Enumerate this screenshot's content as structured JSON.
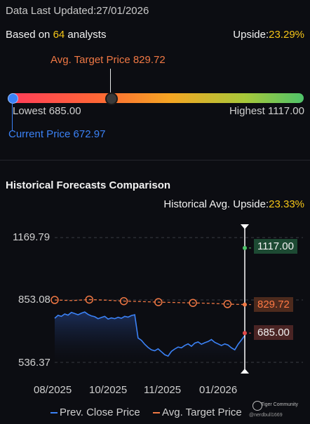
{
  "header": {
    "updated_label": "Data Last Updated:",
    "updated_date": "27/01/2026",
    "based_prefix": "Based on ",
    "analyst_count": "64",
    "based_suffix": " analysts",
    "upside_label": "Upside:",
    "upside_value": "23.29%"
  },
  "target_bar": {
    "avg_target_label": "Avg. Target Price 829.72",
    "lowest_label": "Lowest 685.00",
    "highest_label": "Highest 1117.00",
    "current_label": "Current Price 672.97",
    "colors": {
      "low": "#ff3c5a",
      "mid": "#f5a623",
      "high": "#4fc36a",
      "current": "#3b82f6",
      "avg": "#f07844"
    }
  },
  "history": {
    "title": "Historical Forecasts Comparison",
    "upside_label": "Historical Avg. Upside:",
    "upside_value": "23.33%",
    "y_ticks": [
      "1169.79",
      "853.08",
      "536.37"
    ],
    "x_ticks": [
      "08/2025",
      "10/2025",
      "11/2025",
      "01/2026"
    ],
    "tag_high": "1117.00",
    "tag_avg": "829.72",
    "tag_low": "685.00",
    "legend_close": "Prev. Close Price",
    "legend_target": "Avg. Target Price",
    "brand": "Tiger Community",
    "watermark": "@nerdbull1669"
  },
  "chart_data": {
    "type": "line",
    "x_ticks": [
      "08/2025",
      "10/2025",
      "11/2025",
      "01/2026"
    ],
    "y_ticks": [
      1169.79,
      853.08,
      536.37
    ],
    "ylim": [
      536.37,
      1169.79
    ],
    "series": [
      {
        "name": "Prev. Close Price",
        "color": "#3b82f6",
        "values": [
          760,
          775,
          770,
          782,
          776,
          790,
          784,
          778,
          786,
          792,
          780,
          772,
          768,
          758,
          764,
          770,
          756,
          762,
          758,
          765,
          760,
          770,
          766,
          774,
          778,
          660,
          648,
          628,
          612,
          600,
          595,
          605,
          590,
          575,
          568,
          592,
          604,
          614,
          610,
          622,
          630,
          618,
          634,
          640,
          628,
          636,
          642,
          652,
          638,
          630,
          622,
          630,
          624,
          610,
          600,
          628,
          650,
          672.97
        ]
      },
      {
        "name": "Avg. Target Price",
        "color": "#f07844",
        "values": [
          853.08,
          850,
          855,
          852,
          847,
          845,
          842,
          840,
          838,
          836,
          832,
          829.72
        ]
      }
    ],
    "forecast": {
      "high": 1117.0,
      "avg": 829.72,
      "low": 685.0
    },
    "markers": [
      {
        "label": "1117.00",
        "value": 1117.0
      },
      {
        "label": "829.72",
        "value": 829.72
      },
      {
        "label": "685.00",
        "value": 685.0
      }
    ],
    "grid": true
  }
}
